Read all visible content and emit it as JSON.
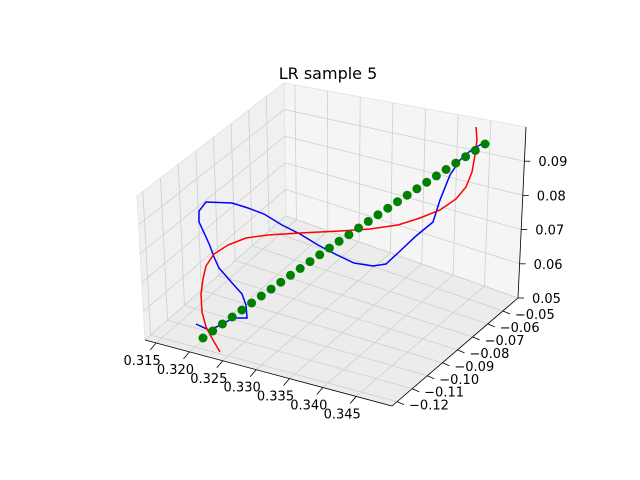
{
  "chart_data": {
    "type": "line3d",
    "title": "LR sample 5",
    "x_ticks": [
      "0.315",
      "0.320",
      "0.325",
      "0.330",
      "0.335",
      "0.340",
      "0.345"
    ],
    "y_ticks": [
      "−0.05",
      "−0.06",
      "−0.07",
      "−0.08",
      "−0.09",
      "−0.10",
      "−0.11",
      "−0.12"
    ],
    "z_ticks": [
      "0.05",
      "0.06",
      "0.07",
      "0.08",
      "0.09"
    ],
    "series": [
      {
        "color": "#0000ff",
        "style": "line"
      },
      {
        "color": "#ff0000",
        "style": "line"
      },
      {
        "color": "#008000",
        "style": "markers"
      }
    ]
  }
}
